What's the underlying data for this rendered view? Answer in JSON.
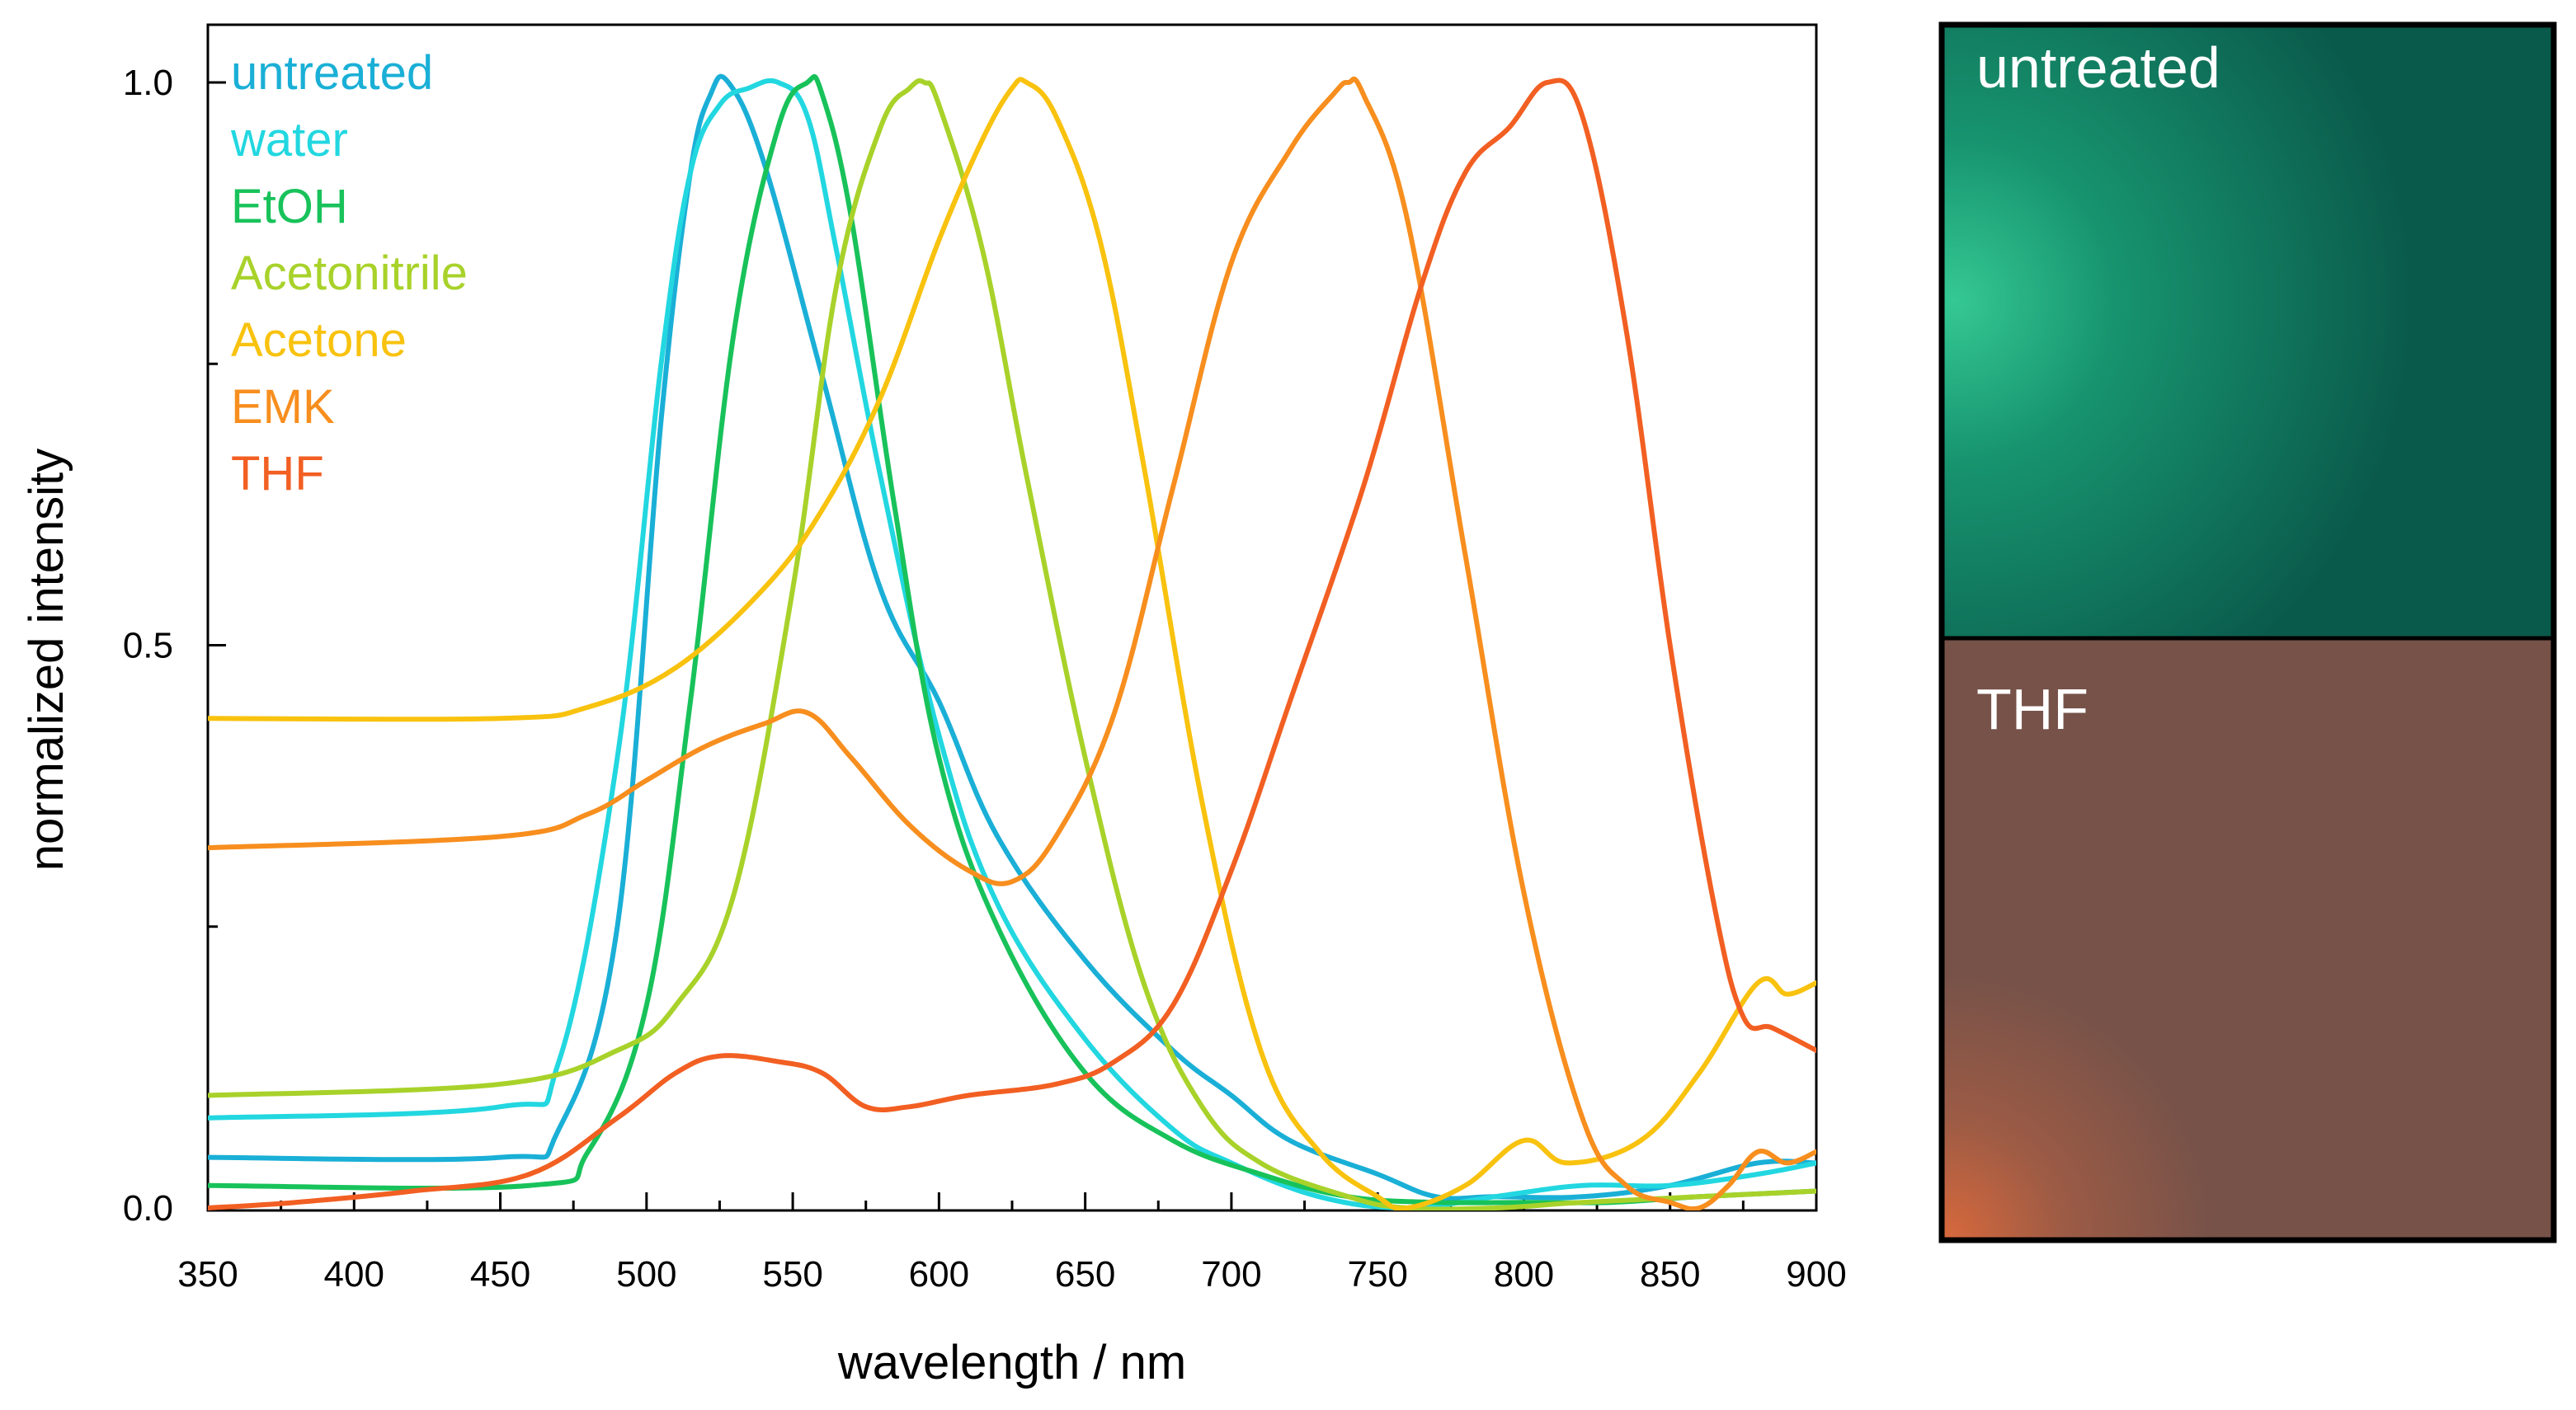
{
  "chart_data": {
    "type": "line",
    "title": "",
    "xlabel": "wavelength / nm",
    "ylabel": "normalized intensity",
    "xlim": [
      350,
      900
    ],
    "ylim": [
      0,
      1.0
    ],
    "xticks": [
      350,
      400,
      450,
      500,
      550,
      600,
      650,
      700,
      750,
      800,
      850,
      900
    ],
    "xtick_labels": [
      "350",
      "400",
      "450",
      "500",
      "550",
      "600",
      "650",
      "700",
      "750",
      "800",
      "850",
      "900"
    ],
    "yticks": [
      0.0,
      0.5,
      1.0
    ],
    "ytick_labels": [
      "0.0",
      "0.5",
      "1.0"
    ],
    "legend_placement": "top-left",
    "series": [
      {
        "name": "untreated",
        "color": "#1AAFD6",
        "x": [
          350,
          450,
          470,
          490,
          505,
          515,
          522,
          528,
          540,
          560,
          580,
          600,
          620,
          650,
          680,
          700,
          720,
          750,
          770,
          790,
          820,
          850,
          880,
          900
        ],
        "y": [
          0.045,
          0.045,
          0.07,
          0.25,
          0.7,
          0.92,
          0.99,
          1.0,
          0.93,
          0.74,
          0.55,
          0.45,
          0.33,
          0.22,
          0.14,
          0.1,
          0.06,
          0.03,
          0.01,
          0.01,
          0.01,
          0.02,
          0.04,
          0.04
        ]
      },
      {
        "name": "water",
        "color": "#22D7E0",
        "x": [
          350,
          450,
          470,
          490,
          505,
          515,
          525,
          535,
          545,
          555,
          565,
          580,
          600,
          620,
          650,
          680,
          700,
          730,
          760,
          790,
          820,
          850,
          880,
          900
        ],
        "y": [
          0.08,
          0.09,
          0.13,
          0.4,
          0.75,
          0.92,
          0.98,
          0.995,
          1.0,
          0.97,
          0.85,
          0.65,
          0.42,
          0.27,
          0.15,
          0.07,
          0.04,
          0.01,
          0.0,
          0.01,
          0.02,
          0.02,
          0.03,
          0.04
        ]
      },
      {
        "name": "EtOH",
        "color": "#18C25A",
        "x": [
          350,
          460,
          480,
          500,
          515,
          530,
          545,
          555,
          560,
          570,
          585,
          600,
          620,
          650,
          680,
          710,
          740,
          770,
          800,
          830,
          860,
          900
        ],
        "y": [
          0.02,
          0.02,
          0.05,
          0.18,
          0.45,
          0.78,
          0.96,
          1.0,
          0.99,
          0.88,
          0.62,
          0.4,
          0.25,
          0.12,
          0.06,
          0.03,
          0.01,
          0.005,
          0.005,
          0.005,
          0.01,
          0.015
        ]
      },
      {
        "name": "Acetonitrile",
        "color": "#A8D22A",
        "x": [
          350,
          450,
          490,
          510,
          530,
          550,
          565,
          580,
          590,
          595,
          600,
          615,
          630,
          650,
          670,
          690,
          710,
          740,
          760,
          790,
          820,
          860,
          900
        ],
        "y": [
          0.1,
          0.11,
          0.14,
          0.18,
          0.28,
          0.55,
          0.82,
          0.96,
          0.995,
          1.0,
          0.98,
          0.85,
          0.65,
          0.4,
          0.2,
          0.09,
          0.04,
          0.01,
          0.0,
          0.0,
          0.005,
          0.01,
          0.015
        ]
      },
      {
        "name": "Acetone",
        "color": "#F8C20E",
        "x": [
          350,
          450,
          480,
          510,
          540,
          560,
          580,
          600,
          615,
          625,
          630,
          640,
          655,
          670,
          690,
          710,
          730,
          750,
          760,
          780,
          800,
          815,
          840,
          860,
          880,
          890,
          900
        ],
        "y": [
          0.435,
          0.435,
          0.445,
          0.48,
          0.55,
          0.62,
          0.72,
          0.86,
          0.95,
          0.995,
          1.0,
          0.97,
          0.86,
          0.66,
          0.36,
          0.14,
          0.05,
          0.01,
          0.0,
          0.02,
          0.06,
          0.04,
          0.06,
          0.12,
          0.2,
          0.19,
          0.2
        ]
      },
      {
        "name": "EMK",
        "color": "#F78E1E",
        "x": [
          350,
          450,
          480,
          500,
          520,
          540,
          555,
          570,
          590,
          610,
          625,
          640,
          660,
          680,
          700,
          720,
          735,
          740,
          745,
          760,
          780,
          800,
          820,
          835,
          850,
          860,
          870,
          880,
          890,
          900
        ],
        "y": [
          0.32,
          0.33,
          0.35,
          0.38,
          0.41,
          0.43,
          0.44,
          0.4,
          0.34,
          0.3,
          0.29,
          0.33,
          0.44,
          0.64,
          0.84,
          0.94,
          0.99,
          1.0,
          0.99,
          0.88,
          0.58,
          0.28,
          0.08,
          0.02,
          0.005,
          0.0,
          0.02,
          0.05,
          0.04,
          0.05
        ]
      },
      {
        "name": "THF",
        "color": "#F25F22",
        "x": [
          350,
          380,
          420,
          460,
          490,
          510,
          525,
          545,
          560,
          575,
          590,
          610,
          640,
          660,
          680,
          700,
          720,
          745,
          765,
          780,
          795,
          808,
          820,
          835,
          850,
          865,
          875,
          885,
          900
        ],
        "y": [
          0.0,
          0.005,
          0.015,
          0.03,
          0.08,
          0.12,
          0.135,
          0.13,
          0.12,
          0.09,
          0.09,
          0.1,
          0.11,
          0.13,
          0.18,
          0.3,
          0.45,
          0.64,
          0.82,
          0.92,
          0.96,
          1.0,
          0.97,
          0.78,
          0.5,
          0.27,
          0.17,
          0.16,
          0.14
        ]
      }
    ]
  },
  "photos": [
    {
      "caption": "untreated",
      "color": "#0C6352",
      "accent": "#21B07F"
    },
    {
      "caption": "THF",
      "color": "#7A544B",
      "accent": "#C25E3D"
    }
  ]
}
